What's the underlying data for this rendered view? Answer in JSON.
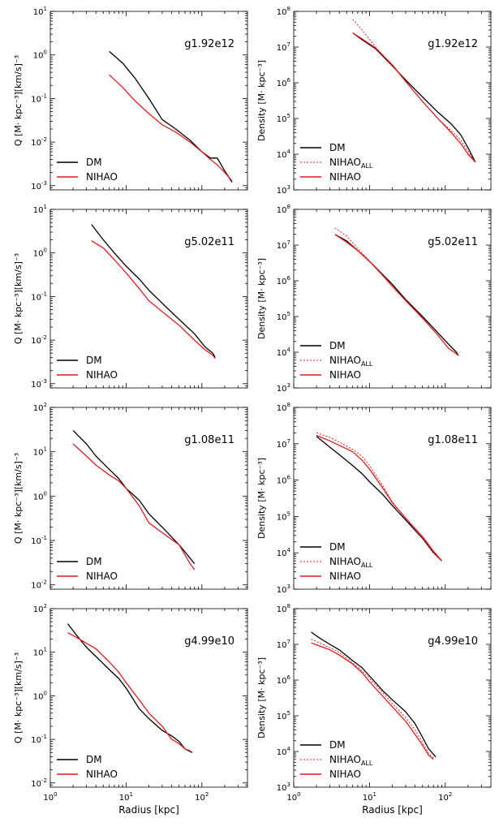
{
  "figure": {
    "xlabel": "Radius [kpc]",
    "colors": {
      "dm": "#000000",
      "nihao": "#e41a1c",
      "nihao_all": "#e41a1c"
    }
  },
  "chart_data": [
    {
      "type": "line",
      "panel": "g1.92e12-Q",
      "title": "g1.92e12",
      "ylabel": "Q [M· kpc⁻³][km/s]⁻³",
      "xlim": [
        1,
        400
      ],
      "ylim": [
        0.0008,
        10
      ],
      "xscale": "log",
      "yscale": "log",
      "yticks": [
        {
          "v": 0.001,
          "e": "-3"
        },
        {
          "v": 0.01,
          "e": "-2"
        },
        {
          "v": 0.1,
          "e": "-1"
        },
        {
          "v": 1,
          "e": "0"
        },
        {
          "v": 10,
          "e": "1"
        }
      ],
      "xticks": [],
      "legend": "lower-left",
      "series": [
        {
          "name": "DM",
          "x": [
            6,
            9,
            13,
            20,
            30,
            45,
            70,
            100,
            130,
            160,
            200,
            250
          ],
          "y": [
            1.2,
            0.65,
            0.3,
            0.1,
            0.033,
            0.02,
            0.011,
            0.006,
            0.0043,
            0.0043,
            0.0022,
            0.0012
          ]
        },
        {
          "name": "NIHAO",
          "x": [
            6,
            9,
            13,
            20,
            30,
            45,
            70,
            100,
            130,
            160,
            200,
            250
          ],
          "y": [
            0.35,
            0.18,
            0.09,
            0.045,
            0.025,
            0.017,
            0.01,
            0.006,
            0.004,
            0.003,
            0.002,
            0.0013
          ]
        }
      ]
    },
    {
      "type": "line",
      "panel": "g1.92e12-Density",
      "title": "g1.92e12",
      "ylabel": "Density [M· kpc⁻³]",
      "xlim": [
        1,
        400
      ],
      "ylim": [
        1000,
        100000000
      ],
      "xscale": "log",
      "yscale": "log",
      "yticks": [
        {
          "v": 1000,
          "e": "3"
        },
        {
          "v": 10000,
          "e": "4"
        },
        {
          "v": 100000,
          "e": "5"
        },
        {
          "v": 1000000,
          "e": "6"
        },
        {
          "v": 10000000,
          "e": "7"
        },
        {
          "v": 100000000,
          "e": "8"
        }
      ],
      "xticks": [],
      "legend": "lower-left",
      "series": [
        {
          "name": "DM",
          "x": [
            6,
            8,
            12,
            20,
            30,
            50,
            80,
            120,
            160,
            200,
            250
          ],
          "y": [
            25000000,
            16000000,
            9000000,
            3000000,
            1200000,
            400000,
            150000,
            70000,
            35000,
            15000,
            6000
          ]
        },
        {
          "name": "NIHAO_ALL",
          "x": [
            6,
            8,
            12,
            20,
            30,
            50,
            80,
            120,
            160,
            200,
            250
          ],
          "y": [
            60000000,
            30000000,
            10000000,
            3000000,
            1100000,
            300000,
            100000,
            45000,
            25000,
            12000,
            6000
          ]
        },
        {
          "name": "NIHAO",
          "x": [
            6,
            8,
            12,
            20,
            30,
            50,
            80,
            120,
            160,
            200,
            250
          ],
          "y": [
            25000000,
            17000000,
            9500000,
            3200000,
            1100000,
            300000,
            100000,
            40000,
            20000,
            10000,
            6000
          ]
        }
      ]
    },
    {
      "type": "line",
      "panel": "g5.02e11-Q",
      "title": "g5.02e11",
      "ylabel": "Q [M· kpc⁻³][km/s]⁻³",
      "xlim": [
        1,
        400
      ],
      "ylim": [
        0.0008,
        10
      ],
      "xscale": "log",
      "yscale": "log",
      "yticks": [
        {
          "v": 0.001,
          "e": "-3"
        },
        {
          "v": 0.01,
          "e": "-2"
        },
        {
          "v": 0.1,
          "e": "-1"
        },
        {
          "v": 1,
          "e": "0"
        },
        {
          "v": 10,
          "e": "1"
        }
      ],
      "xticks": [],
      "legend": "lower-left",
      "series": [
        {
          "name": "DM",
          "x": [
            3.5,
            5,
            7,
            10,
            15,
            20,
            30,
            50,
            80,
            110,
            140,
            150
          ],
          "y": [
            4.5,
            2.0,
            1.0,
            0.5,
            0.25,
            0.14,
            0.07,
            0.03,
            0.014,
            0.007,
            0.005,
            0.004
          ]
        },
        {
          "name": "NIHAO",
          "x": [
            3.5,
            5,
            7,
            10,
            15,
            20,
            30,
            50,
            80,
            110,
            140,
            150
          ],
          "y": [
            1.9,
            1.3,
            0.7,
            0.35,
            0.15,
            0.08,
            0.045,
            0.022,
            0.01,
            0.006,
            0.0045,
            0.0038
          ]
        }
      ]
    },
    {
      "type": "line",
      "panel": "g5.02e11-Density",
      "title": "g5.02e11",
      "ylabel": "Density [M· kpc⁻³]",
      "xlim": [
        1,
        400
      ],
      "ylim": [
        1000,
        100000000
      ],
      "xscale": "log",
      "yscale": "log",
      "yticks": [
        {
          "v": 1000,
          "e": "3"
        },
        {
          "v": 10000,
          "e": "4"
        },
        {
          "v": 100000,
          "e": "5"
        },
        {
          "v": 1000000,
          "e": "6"
        },
        {
          "v": 10000000,
          "e": "7"
        },
        {
          "v": 100000000,
          "e": "8"
        }
      ],
      "xticks": [],
      "legend": "lower-left",
      "series": [
        {
          "name": "DM",
          "x": [
            3.5,
            5,
            7,
            10,
            15,
            20,
            30,
            50,
            80,
            110,
            140,
            150
          ],
          "y": [
            20000000,
            13000000,
            7000000,
            3500000,
            1500000,
            800000,
            300000,
            100000,
            35000,
            17000,
            10000,
            8000
          ]
        },
        {
          "name": "NIHAO_ALL",
          "x": [
            3.5,
            5,
            7,
            10,
            15,
            20,
            30,
            50,
            80,
            110,
            140,
            150
          ],
          "y": [
            30000000,
            18000000,
            8000000,
            3600000,
            1500000,
            700000,
            280000,
            90000,
            30000,
            13000,
            9000,
            8000
          ]
        },
        {
          "name": "NIHAO",
          "x": [
            3.5,
            5,
            7,
            10,
            15,
            20,
            30,
            50,
            80,
            110,
            140,
            150
          ],
          "y": [
            20000000,
            12000000,
            7000000,
            3500000,
            1400000,
            700000,
            280000,
            90000,
            30000,
            13000,
            9000,
            8000
          ]
        }
      ]
    },
    {
      "type": "line",
      "panel": "g1.08e11-Q",
      "title": "g1.08e11",
      "ylabel": "Q [M· kpc⁻³][km/s]⁻³",
      "xlim": [
        1,
        400
      ],
      "ylim": [
        0.008,
        100
      ],
      "xscale": "log",
      "yscale": "log",
      "yticks": [
        {
          "v": 0.01,
          "e": "-2"
        },
        {
          "v": 0.1,
          "e": "-1"
        },
        {
          "v": 1,
          "e": "0"
        },
        {
          "v": 10,
          "e": "1"
        },
        {
          "v": 100,
          "e": "2"
        }
      ],
      "xticks": [],
      "legend": "lower-left",
      "series": [
        {
          "name": "DM",
          "x": [
            2,
            3,
            4,
            6,
            8,
            10,
            15,
            20,
            30,
            50,
            70,
            80
          ],
          "y": [
            30,
            15,
            8,
            4,
            2.5,
            1.5,
            0.8,
            0.4,
            0.2,
            0.08,
            0.04,
            0.03
          ]
        },
        {
          "name": "NIHAO",
          "x": [
            2,
            3,
            4,
            6,
            8,
            10,
            15,
            20,
            30,
            50,
            70,
            80
          ],
          "y": [
            15,
            8,
            5,
            3,
            2.2,
            1.5,
            0.6,
            0.25,
            0.15,
            0.08,
            0.03,
            0.022
          ]
        }
      ]
    },
    {
      "type": "line",
      "panel": "g1.08e11-Density",
      "title": "g1.08e11",
      "ylabel": "Density [M· kpc⁻³]",
      "xlim": [
        1,
        400
      ],
      "ylim": [
        1000,
        100000000
      ],
      "xscale": "log",
      "yscale": "log",
      "yticks": [
        {
          "v": 1000,
          "e": "3"
        },
        {
          "v": 10000,
          "e": "4"
        },
        {
          "v": 100000,
          "e": "5"
        },
        {
          "v": 1000000,
          "e": "6"
        },
        {
          "v": 10000000,
          "e": "7"
        },
        {
          "v": 100000000,
          "e": "8"
        }
      ],
      "xticks": [],
      "legend": "lower-left",
      "series": [
        {
          "name": "DM",
          "x": [
            2,
            3,
            4,
            6,
            8,
            10,
            15,
            20,
            30,
            50,
            70,
            90
          ],
          "y": [
            16000000,
            8000000,
            5000000,
            2500000,
            1500000,
            900000,
            400000,
            200000,
            80000,
            25000,
            10000,
            6000
          ]
        },
        {
          "name": "NIHAO_ALL",
          "x": [
            2,
            3,
            4,
            6,
            8,
            10,
            15,
            20,
            30,
            50,
            70,
            90
          ],
          "y": [
            20000000,
            15000000,
            11000000,
            7000000,
            4500000,
            2500000,
            700000,
            250000,
            90000,
            25000,
            10000,
            6000
          ]
        },
        {
          "name": "NIHAO",
          "x": [
            2,
            3,
            4,
            6,
            8,
            10,
            15,
            20,
            30,
            50,
            70,
            90
          ],
          "y": [
            17000000,
            12000000,
            9000000,
            6000000,
            3500000,
            2000000,
            600000,
            240000,
            90000,
            28000,
            11000,
            6000
          ]
        }
      ]
    },
    {
      "type": "line",
      "panel": "g4.99e10-Q",
      "title": "g4.99e10",
      "ylabel": "Q [M· kpc⁻³][km/s]⁻³",
      "xlim": [
        1,
        400
      ],
      "ylim": [
        0.008,
        100
      ],
      "xscale": "log",
      "yscale": "log",
      "yticks": [
        {
          "v": 0.01,
          "e": "-2"
        },
        {
          "v": 0.1,
          "e": "-1"
        },
        {
          "v": 1,
          "e": "0"
        },
        {
          "v": 10,
          "e": "1"
        },
        {
          "v": 100,
          "e": "2"
        }
      ],
      "xticks": [
        {
          "v": 1,
          "e": "0"
        },
        {
          "v": 10,
          "e": "1"
        },
        {
          "v": 100,
          "e": "2"
        }
      ],
      "legend": "lower-left",
      "series": [
        {
          "name": "DM",
          "x": [
            1.7,
            2.2,
            3,
            4,
            6,
            8,
            10,
            15,
            20,
            30,
            40,
            50,
            60,
            75
          ],
          "y": [
            45,
            25,
            13,
            8,
            4,
            2.5,
            1.5,
            0.5,
            0.3,
            0.16,
            0.12,
            0.09,
            0.06,
            0.05
          ]
        },
        {
          "name": "NIHAO",
          "x": [
            1.7,
            2.2,
            3,
            4,
            6,
            8,
            10,
            15,
            20,
            30,
            40,
            50,
            60,
            70
          ],
          "y": [
            28,
            22,
            16,
            12,
            6,
            3.5,
            2.0,
            0.8,
            0.4,
            0.2,
            0.1,
            0.08,
            0.06,
            0.055
          ]
        }
      ]
    },
    {
      "type": "line",
      "panel": "g4.99e10-Density",
      "title": "g4.99e10",
      "ylabel": "Density [M· kpc⁻³]",
      "xlim": [
        1,
        400
      ],
      "ylim": [
        1000,
        100000000
      ],
      "xscale": "log",
      "yscale": "log",
      "yticks": [
        {
          "v": 1000,
          "e": "3"
        },
        {
          "v": 10000,
          "e": "4"
        },
        {
          "v": 100000,
          "e": "5"
        },
        {
          "v": 1000000,
          "e": "6"
        },
        {
          "v": 10000000,
          "e": "7"
        },
        {
          "v": 100000000,
          "e": "8"
        }
      ],
      "xticks": [
        {
          "v": 1,
          "e": "0"
        },
        {
          "v": 10,
          "e": "1"
        },
        {
          "v": 100,
          "e": "2"
        }
      ],
      "legend": "lower-left",
      "series": [
        {
          "name": "DM",
          "x": [
            1.7,
            2.2,
            3,
            4,
            6,
            8,
            10,
            15,
            20,
            30,
            40,
            50,
            60,
            75
          ],
          "y": [
            22000000,
            15000000,
            10000000,
            7000000,
            3500000,
            2200000,
            1300000,
            500000,
            280000,
            130000,
            60000,
            25000,
            12000,
            7000
          ]
        },
        {
          "name": "NIHAO_ALL",
          "x": [
            1.7,
            2.2,
            3,
            4,
            6,
            8,
            10,
            15,
            20,
            30,
            40,
            50,
            60,
            70
          ],
          "y": [
            14000000,
            11000000,
            8000000,
            6000000,
            3000000,
            1800000,
            1100000,
            450000,
            220000,
            90000,
            40000,
            18000,
            9000,
            6500
          ]
        },
        {
          "name": "NIHAO",
          "x": [
            1.7,
            2.2,
            3,
            4,
            6,
            8,
            10,
            15,
            20,
            30,
            40,
            50,
            60,
            70
          ],
          "y": [
            11000000,
            9000000,
            7000000,
            5000000,
            2800000,
            1600000,
            900000,
            350000,
            180000,
            70000,
            30000,
            15000,
            8000,
            6000
          ]
        }
      ]
    }
  ]
}
